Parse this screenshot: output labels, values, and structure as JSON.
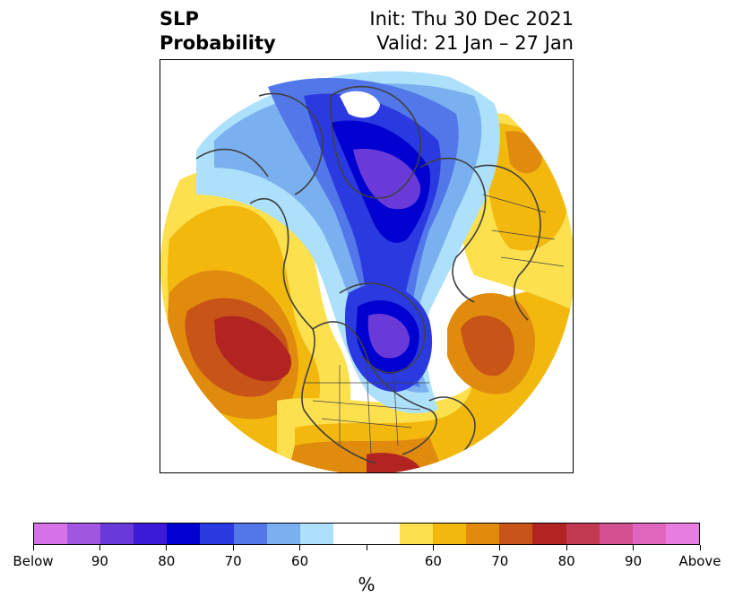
{
  "header": {
    "title_line1": "SLP",
    "title_line2": "Probability",
    "init": "Init: Thu 30 Dec 2021",
    "valid": "Valid: 21 Jan – 27 Jan"
  },
  "colorbar": {
    "unit": "%",
    "colors": [
      "#d572e8",
      "#a056e0",
      "#6a3ad9",
      "#3d1ad8",
      "#0000d0",
      "#2a3ae0",
      "#5277e8",
      "#7ab0f0",
      "#ade0fb",
      "#ffffff",
      "#ffffff",
      "#fde04e",
      "#f2b80e",
      "#e08a0e",
      "#c85418",
      "#b12422",
      "#c23a52",
      "#d25090",
      "#df66bf",
      "#e87ddf"
    ],
    "tick_labels": [
      "Below",
      "90",
      "80",
      "70",
      "60",
      "60",
      "70",
      "80",
      "90",
      "Above"
    ]
  },
  "map": {
    "colors": {
      "blue_light": "#ade0fb",
      "blue_mid": "#7ab0f0",
      "blue": "#5277e8",
      "blue_dark": "#2a3ae0",
      "blue_deep": "#0000d0",
      "purple": "#6a3ad9",
      "yellow": "#fde04e",
      "gold": "#f2b80e",
      "orange": "#e08a0e",
      "orange_dark": "#c85418",
      "red": "#b12422",
      "coast": "#404040"
    }
  }
}
